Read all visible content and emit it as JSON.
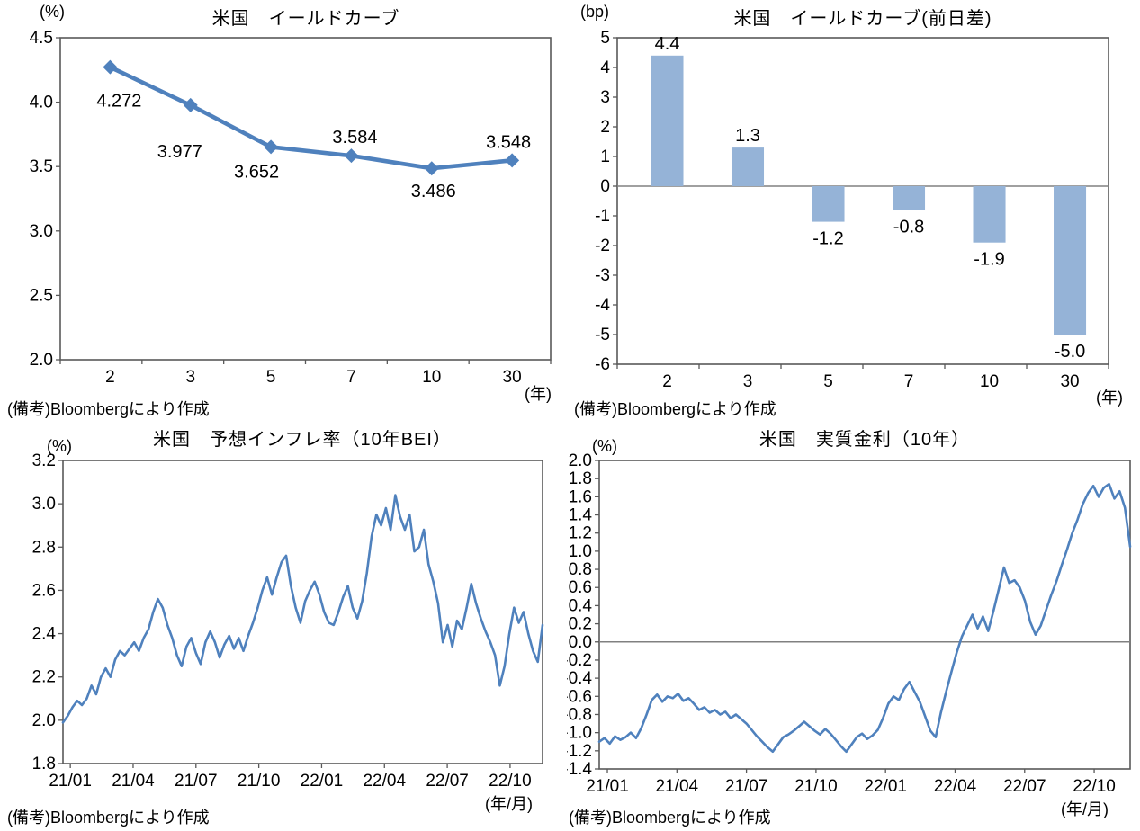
{
  "chart_data": [
    {
      "id": "us_yield_curve",
      "type": "line",
      "title": "米国　イールドカーブ",
      "y_unit": "(%)",
      "x_unit": "(年)",
      "source_note": "(備考)Bloombergにより作成",
      "categories": [
        "2",
        "3",
        "5",
        "7",
        "10",
        "30"
      ],
      "values": [
        4.272,
        3.977,
        3.652,
        3.584,
        3.486,
        3.548
      ],
      "point_labels": [
        "4.272",
        "3.977",
        "3.652",
        "3.584",
        "3.486",
        "3.548"
      ],
      "ylim": [
        2.0,
        4.5
      ],
      "ytick_labels": [
        "4.5",
        "4.0",
        "3.5",
        "3.0",
        "2.5",
        "2.0"
      ],
      "line_color": "#4F81BD",
      "grid": false,
      "legend": "none"
    },
    {
      "id": "us_yield_curve_daily_change",
      "type": "bar",
      "title": "米国　イールドカーブ(前日差)",
      "y_unit": "(bp)",
      "x_unit": "(年)",
      "source_note": "(備考)Bloombergにより作成",
      "categories": [
        "2",
        "3",
        "5",
        "7",
        "10",
        "30"
      ],
      "values": [
        4.4,
        1.3,
        -1.2,
        -0.8,
        -1.9,
        -5.0
      ],
      "point_labels": [
        "4.4",
        "1.3",
        "-1.2",
        "-0.8",
        "-1.9",
        "-5.0"
      ],
      "ylim": [
        -6,
        5
      ],
      "ytick_labels": [
        "5",
        "4",
        "3",
        "2",
        "1",
        "0",
        "-1",
        "-2",
        "-3",
        "-4",
        "-5",
        "-6"
      ],
      "bar_color": "#95B3D7",
      "zero_line": true,
      "grid": false,
      "legend": "none"
    },
    {
      "id": "us_expected_inflation_10y_bei",
      "type": "timeseries",
      "title": "米国　予想インフレ率（10年BEI）",
      "y_unit": "(%)",
      "x_unit": "(年/月)",
      "source_note": "(備考)Bloombergにより作成",
      "x_range": "2021/01 - 2022/12 (weekly samples)",
      "xtick_labels": [
        "21/01",
        "21/04",
        "21/07",
        "21/10",
        "22/01",
        "22/04",
        "22/07",
        "22/10"
      ],
      "values": [
        1.99,
        2.02,
        2.06,
        2.09,
        2.07,
        2.1,
        2.16,
        2.12,
        2.2,
        2.24,
        2.2,
        2.28,
        2.32,
        2.3,
        2.33,
        2.36,
        2.32,
        2.38,
        2.42,
        2.5,
        2.56,
        2.52,
        2.44,
        2.38,
        2.3,
        2.25,
        2.34,
        2.38,
        2.31,
        2.26,
        2.36,
        2.41,
        2.36,
        2.29,
        2.35,
        2.39,
        2.33,
        2.38,
        2.32,
        2.39,
        2.45,
        2.52,
        2.6,
        2.66,
        2.58,
        2.66,
        2.73,
        2.76,
        2.62,
        2.52,
        2.45,
        2.55,
        2.6,
        2.64,
        2.58,
        2.5,
        2.45,
        2.44,
        2.5,
        2.57,
        2.62,
        2.52,
        2.47,
        2.55,
        2.68,
        2.85,
        2.95,
        2.9,
        2.98,
        2.88,
        3.04,
        2.94,
        2.88,
        2.95,
        2.78,
        2.8,
        2.88,
        2.72,
        2.64,
        2.54,
        2.36,
        2.44,
        2.34,
        2.46,
        2.42,
        2.52,
        2.63,
        2.54,
        2.47,
        2.41,
        2.36,
        2.3,
        2.16,
        2.25,
        2.4,
        2.52,
        2.45,
        2.5,
        2.4,
        2.32,
        2.27,
        2.44
      ],
      "ylim": [
        1.8,
        3.2
      ],
      "ytick_labels": [
        "3.2",
        "3.0",
        "2.8",
        "2.6",
        "2.4",
        "2.2",
        "2.0",
        "1.8"
      ],
      "line_color": "#4F81BD",
      "zero_line": false,
      "grid": false,
      "legend": "none"
    },
    {
      "id": "us_real_yield_10y",
      "type": "timeseries",
      "title": "米国　実質金利（10年）",
      "y_unit": "(%)",
      "x_unit": "(年/月)",
      "source_note": "(備考)Bloombergにより作成",
      "x_range": "2021/01 - 2022/12 (weekly samples)",
      "xtick_labels": [
        "21/01",
        "21/04",
        "21/07",
        "21/10",
        "22/01",
        "22/04",
        "22/07",
        "22/10"
      ],
      "values": [
        -1.1,
        -1.06,
        -1.12,
        -1.04,
        -1.08,
        -1.05,
        -1.0,
        -1.06,
        -0.95,
        -0.8,
        -0.64,
        -0.58,
        -0.66,
        -0.6,
        -0.62,
        -0.57,
        -0.65,
        -0.62,
        -0.68,
        -0.75,
        -0.72,
        -0.78,
        -0.75,
        -0.8,
        -0.77,
        -0.84,
        -0.8,
        -0.85,
        -0.9,
        -0.97,
        -1.04,
        -1.1,
        -1.16,
        -1.21,
        -1.13,
        -1.05,
        -1.02,
        -0.98,
        -0.93,
        -0.88,
        -0.93,
        -0.98,
        -1.02,
        -0.96,
        -1.01,
        -1.08,
        -1.15,
        -1.21,
        -1.13,
        -1.05,
        -1.01,
        -1.07,
        -1.03,
        -0.97,
        -0.84,
        -0.68,
        -0.6,
        -0.64,
        -0.52,
        -0.44,
        -0.55,
        -0.66,
        -0.82,
        -0.98,
        -1.05,
        -0.78,
        -0.55,
        -0.33,
        -0.12,
        0.06,
        0.18,
        0.3,
        0.15,
        0.28,
        0.12,
        0.34,
        0.58,
        0.82,
        0.65,
        0.68,
        0.6,
        0.45,
        0.22,
        0.08,
        0.18,
        0.35,
        0.52,
        0.67,
        0.85,
        1.02,
        1.2,
        1.35,
        1.52,
        1.64,
        1.72,
        1.6,
        1.7,
        1.74,
        1.58,
        1.66,
        1.48,
        1.05
      ],
      "ylim": [
        -1.4,
        2.0
      ],
      "ytick_labels": [
        "2.0",
        "1.8",
        "1.6",
        "1.4",
        "1.2",
        "1.0",
        "0.8",
        "0.6",
        "0.4",
        "0.2",
        "0.0",
        "-0.2",
        "-0.4",
        "-0.6",
        "-0.8",
        "-1.0",
        "-1.2",
        "-1.4"
      ],
      "line_color": "#4F81BD",
      "zero_line": true,
      "grid": false,
      "legend": "none"
    }
  ],
  "style": {
    "frame_color": "#595959",
    "zero_line_color": "#808080",
    "accent_blue": "#4F81BD",
    "bar_blue": "#95B3D7"
  }
}
